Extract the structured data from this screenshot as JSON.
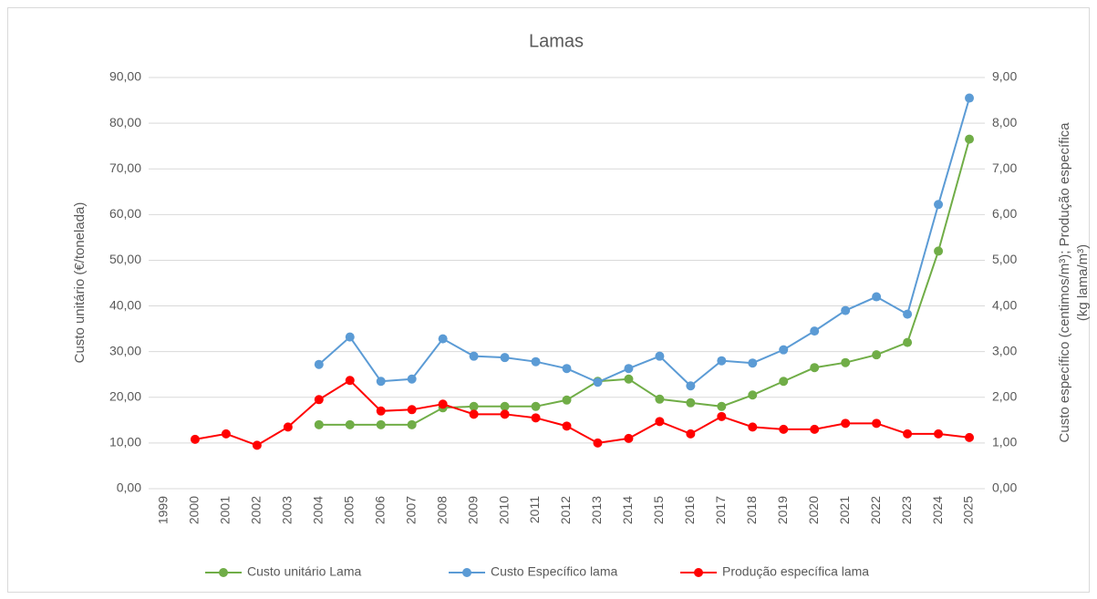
{
  "chart_data": {
    "type": "line",
    "title": "Lamas",
    "ylabel": "Custo unitário (€/tonelada)",
    "y2label": [
      "Custo específico (centimos/m³); Produção específica",
      "(kg lama/m³)"
    ],
    "categories": [
      "1999",
      "2000",
      "2001",
      "2002",
      "2003",
      "2004",
      "2005",
      "2006",
      "2007",
      "2008",
      "2009",
      "2010",
      "2011",
      "2012",
      "2013",
      "2014",
      "2015",
      "2016",
      "2017",
      "2018",
      "2019",
      "2020",
      "2021",
      "2022",
      "2023",
      "2024",
      "2025"
    ],
    "series": [
      {
        "name": "Custo unitário Lama",
        "color": "#70ad47",
        "axis": "y",
        "values": [
          null,
          null,
          null,
          null,
          null,
          14,
          14,
          14,
          14,
          17.7,
          18,
          18,
          18,
          19.4,
          23.5,
          24,
          19.6,
          18.8,
          18,
          20.5,
          23.5,
          26.5,
          27.6,
          29.3,
          32,
          52,
          76.5
        ]
      },
      {
        "name": "Custo Específico lama",
        "color": "#5b9bd5",
        "axis": "y2",
        "values": [
          null,
          null,
          null,
          null,
          null,
          2.72,
          3.32,
          2.35,
          2.4,
          3.28,
          2.9,
          2.87,
          2.78,
          2.63,
          2.33,
          2.63,
          2.9,
          2.25,
          2.8,
          2.75,
          3.04,
          3.45,
          3.9,
          4.2,
          3.82,
          6.22,
          8.55
        ]
      },
      {
        "name": "Produção específica lama",
        "color": "#ff0000",
        "axis": "y2",
        "values": [
          null,
          1.08,
          1.2,
          0.95,
          1.35,
          1.95,
          2.37,
          1.7,
          1.73,
          1.85,
          1.63,
          1.63,
          1.55,
          1.37,
          1.0,
          1.1,
          1.47,
          1.2,
          1.58,
          1.35,
          1.3,
          1.3,
          1.43,
          1.43,
          1.2,
          1.2,
          1.12
        ]
      }
    ],
    "ylim": [
      0,
      90
    ],
    "yticks": [
      {
        "value": 0,
        "label": "0,00"
      },
      {
        "value": 10,
        "label": "10,00"
      },
      {
        "value": 20,
        "label": "20,00"
      },
      {
        "value": 30,
        "label": "30,00"
      },
      {
        "value": 40,
        "label": "40,00"
      },
      {
        "value": 50,
        "label": "50,00"
      },
      {
        "value": 60,
        "label": "60,00"
      },
      {
        "value": 70,
        "label": "70,00"
      },
      {
        "value": 80,
        "label": "80,00"
      },
      {
        "value": 90,
        "label": "90,00"
      }
    ],
    "y2lim": [
      0,
      9
    ],
    "y2ticks": [
      {
        "value": 0,
        "label": "0,00"
      },
      {
        "value": 1,
        "label": "1,00"
      },
      {
        "value": 2,
        "label": "2,00"
      },
      {
        "value": 3,
        "label": "3,00"
      },
      {
        "value": 4,
        "label": "4,00"
      },
      {
        "value": 5,
        "label": "5,00"
      },
      {
        "value": 6,
        "label": "6,00"
      },
      {
        "value": 7,
        "label": "7,00"
      },
      {
        "value": 8,
        "label": "8,00"
      },
      {
        "value": 9,
        "label": "9,00"
      }
    ],
    "grid": true,
    "legend": "bottom"
  }
}
